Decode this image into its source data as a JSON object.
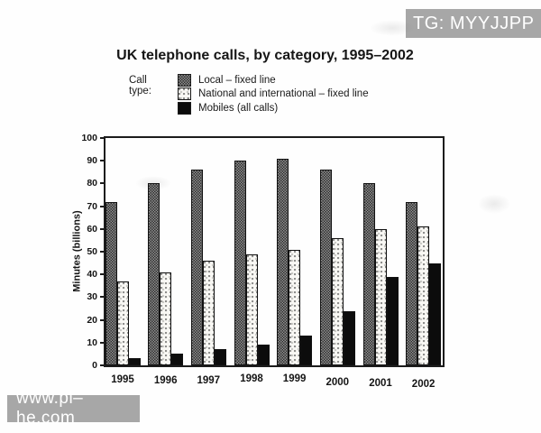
{
  "watermarks": {
    "top_right": "TG: MYYJJPP",
    "bottom_left": "www.pl–he.com"
  },
  "title": "UK telephone calls, by category, 1995–2002",
  "legend": {
    "label": "Call type:",
    "items": [
      {
        "key": "local",
        "label": "Local – fixed line",
        "swatch": "dark-dither"
      },
      {
        "key": "national",
        "label": "National and international – fixed line",
        "swatch": "light-dither"
      },
      {
        "key": "mobiles",
        "label": "Mobiles (all calls)",
        "swatch": "solid-black"
      }
    ]
  },
  "chart_data": {
    "type": "bar",
    "title": "UK telephone calls, by category, 1995–2002",
    "categories": [
      "1995",
      "1996",
      "1997",
      "1998",
      "1999",
      "2000",
      "2001",
      "2002"
    ],
    "series": [
      {
        "name": "Local – fixed line",
        "key": "local",
        "pattern": "dark-dither",
        "values": [
          72,
          80,
          86,
          90,
          91,
          86,
          80,
          72
        ]
      },
      {
        "name": "National and international – fixed line",
        "key": "national",
        "pattern": "light-dither",
        "values": [
          37,
          41,
          46,
          49,
          51,
          56,
          60,
          61
        ]
      },
      {
        "name": "Mobiles (all calls)",
        "key": "mobiles",
        "pattern": "solid-black",
        "values": [
          3,
          5,
          7,
          9,
          13,
          24,
          39,
          45
        ]
      }
    ],
    "xlabel": "",
    "ylabel": "Minutes (billions)",
    "ylim": [
      0,
      100
    ],
    "yticks": [
      0,
      10,
      20,
      30,
      40,
      50,
      60,
      70,
      80,
      90,
      100
    ],
    "grid": false,
    "legend_position": "top-left"
  },
  "colors": {
    "watermark_bg": "#a7a7a7",
    "watermark_text": "#ffffff",
    "bar_outline": "#111111",
    "plot_border": "#1c1c1c"
  }
}
